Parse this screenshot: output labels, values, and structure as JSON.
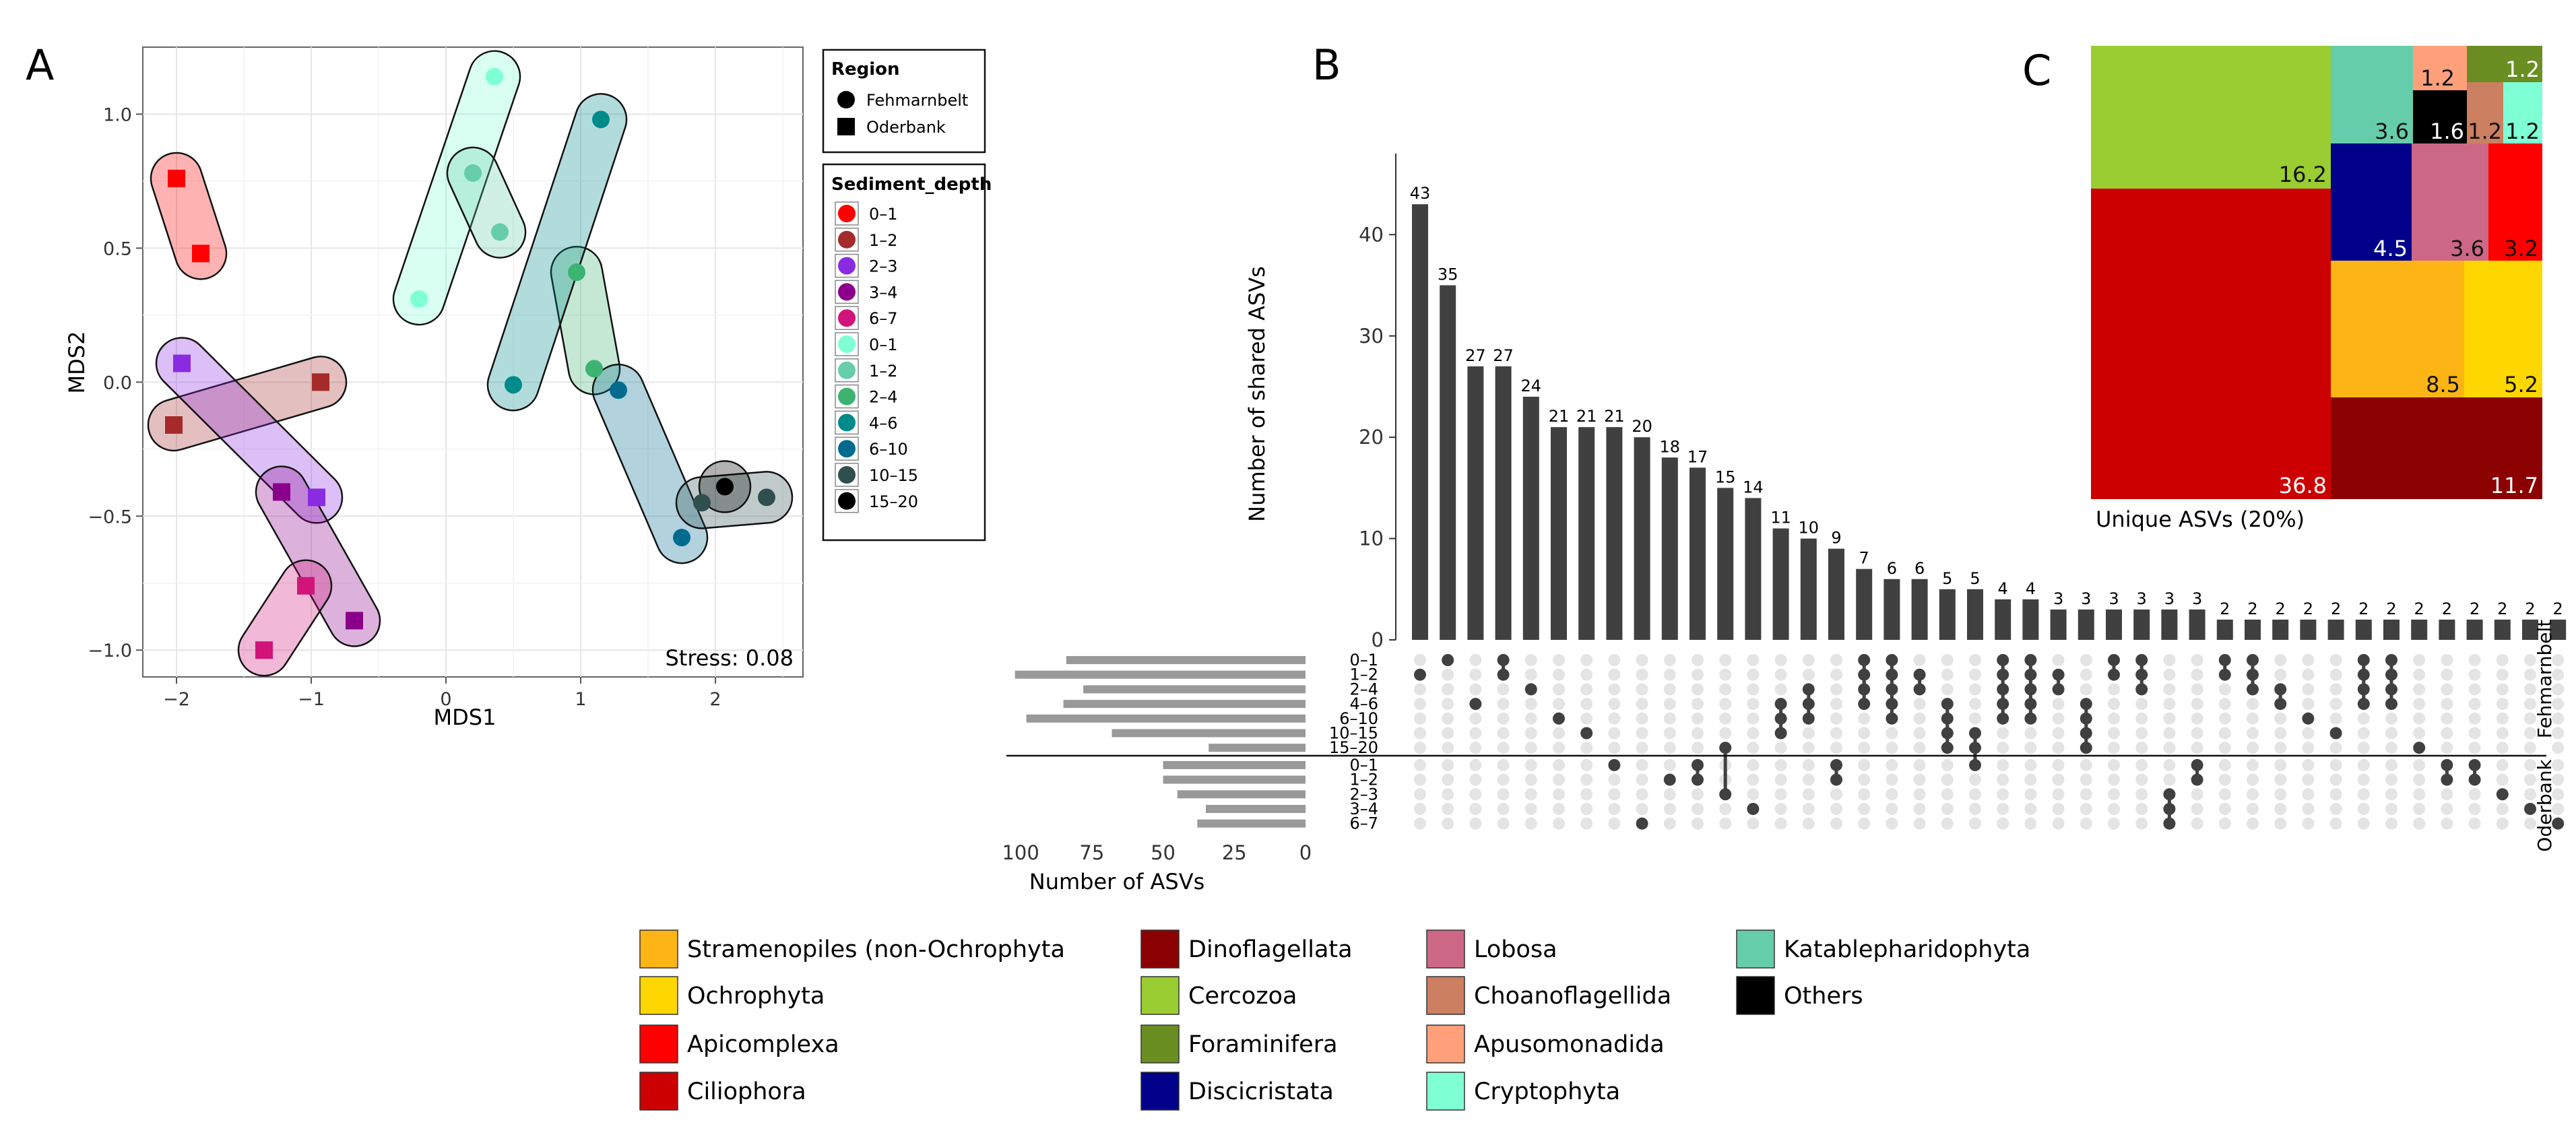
{
  "panel_labels": {
    "a": "A",
    "b": "B",
    "c": "C"
  },
  "colors": {
    "grid": "#e6e6e6",
    "bar": "#404040",
    "dot_on": "#404040",
    "dot_off": "#e4e4e4",
    "set_bar": "#999999"
  },
  "chart_data": [
    {
      "id": "nmds",
      "type": "scatter",
      "title": "",
      "xlabel": "MDS1",
      "ylabel": "MDS2",
      "xlim": [
        -2.25,
        2.65
      ],
      "ylim": [
        -1.1,
        1.25
      ],
      "x_ticks": [
        -2,
        -1,
        0,
        1,
        2
      ],
      "x_tick_labels": [
        "−2",
        "−1",
        "0",
        "1",
        "2"
      ],
      "y_ticks": [
        -1.0,
        -0.5,
        0.0,
        0.5,
        1.0
      ],
      "y_tick_labels": [
        "−1.0",
        "−0.5",
        "0.0",
        "0.5",
        "1.0"
      ],
      "stress_label": "Stress: 0.08",
      "legend_region": {
        "title": "Region",
        "items": [
          {
            "label": "Fehmarnbelt",
            "shape": "circle"
          },
          {
            "label": "Oderbank",
            "shape": "square"
          }
        ]
      },
      "legend_depth": {
        "title": "Sediment_depth",
        "items": [
          {
            "label": "0–1",
            "color": "#ff0000"
          },
          {
            "label": "1–2",
            "color": "#a52a2a"
          },
          {
            "label": "2–3",
            "color": "#8a2be2"
          },
          {
            "label": "3–4",
            "color": "#8b008b"
          },
          {
            "label": "6–7",
            "color": "#d0147a"
          },
          {
            "label": "0–1",
            "color": "#7fffd4"
          },
          {
            "label": "1–2",
            "color": "#66cdaa"
          },
          {
            "label": "2–4",
            "color": "#3cb371"
          },
          {
            "label": "4–6",
            "color": "#008b8b"
          },
          {
            "label": "6–10",
            "color": "#006b8f"
          },
          {
            "label": "10–15",
            "color": "#2f4f4f"
          },
          {
            "label": "15–20",
            "color": "#000000"
          }
        ]
      },
      "points": [
        {
          "x": -2.0,
          "y": 0.76,
          "shape": "square",
          "depth": 0
        },
        {
          "x": -1.82,
          "y": 0.48,
          "shape": "square",
          "depth": 0
        },
        {
          "x": -1.96,
          "y": 0.07,
          "shape": "square",
          "depth": 2
        },
        {
          "x": -2.02,
          "y": -0.16,
          "shape": "square",
          "depth": 1
        },
        {
          "x": -0.93,
          "y": 0.0,
          "shape": "square",
          "depth": 1
        },
        {
          "x": -1.22,
          "y": -0.41,
          "shape": "square",
          "depth": 3
        },
        {
          "x": -0.96,
          "y": -0.43,
          "shape": "square",
          "depth": 2
        },
        {
          "x": -1.04,
          "y": -0.76,
          "shape": "square",
          "depth": 4
        },
        {
          "x": -0.68,
          "y": -0.89,
          "shape": "square",
          "depth": 3
        },
        {
          "x": -1.35,
          "y": -1.0,
          "shape": "square",
          "depth": 4
        },
        {
          "x": 0.36,
          "y": 1.14,
          "shape": "circle",
          "depth": 5
        },
        {
          "x": 0.2,
          "y": 0.78,
          "shape": "circle",
          "depth": 6
        },
        {
          "x": 0.4,
          "y": 0.56,
          "shape": "circle",
          "depth": 6
        },
        {
          "x": -0.2,
          "y": 0.31,
          "shape": "circle",
          "depth": 5
        },
        {
          "x": 1.15,
          "y": 0.98,
          "shape": "circle",
          "depth": 8
        },
        {
          "x": 0.97,
          "y": 0.41,
          "shape": "circle",
          "depth": 7
        },
        {
          "x": 1.1,
          "y": 0.05,
          "shape": "circle",
          "depth": 7
        },
        {
          "x": 0.5,
          "y": -0.01,
          "shape": "circle",
          "depth": 8
        },
        {
          "x": 1.28,
          "y": -0.03,
          "shape": "circle",
          "depth": 9
        },
        {
          "x": 1.75,
          "y": -0.58,
          "shape": "circle",
          "depth": 9
        },
        {
          "x": 1.9,
          "y": -0.45,
          "shape": "circle",
          "depth": 10
        },
        {
          "x": 2.38,
          "y": -0.43,
          "shape": "circle",
          "depth": 10
        },
        {
          "x": 2.07,
          "y": -0.39,
          "shape": "circle",
          "depth": 11
        }
      ],
      "hulls": [
        {
          "x1": -2.0,
          "y1": 0.76,
          "x2": -1.82,
          "y2": 0.48,
          "color": "#ff0000"
        },
        {
          "x1": -2.02,
          "y1": -0.16,
          "x2": -0.93,
          "y2": 0.0,
          "color": "#a52a2a"
        },
        {
          "x1": -1.96,
          "y1": 0.07,
          "x2": -0.96,
          "y2": -0.43,
          "color": "#8a2be2"
        },
        {
          "x1": -1.22,
          "y1": -0.41,
          "x2": -0.68,
          "y2": -0.89,
          "color": "#8b008b"
        },
        {
          "x1": -1.04,
          "y1": -0.76,
          "x2": -1.35,
          "y2": -1.0,
          "color": "#d0147a"
        },
        {
          "x1": 0.36,
          "y1": 1.14,
          "x2": -0.2,
          "y2": 0.31,
          "color": "#7fffd4"
        },
        {
          "x1": 0.2,
          "y1": 0.78,
          "x2": 0.4,
          "y2": 0.56,
          "color": "#66cdaa"
        },
        {
          "x1": 0.97,
          "y1": 0.41,
          "x2": 1.1,
          "y2": 0.05,
          "color": "#3cb371"
        },
        {
          "x1": 1.15,
          "y1": 0.98,
          "x2": 0.5,
          "y2": -0.01,
          "color": "#008b8b"
        },
        {
          "x1": 1.28,
          "y1": -0.03,
          "x2": 1.75,
          "y2": -0.58,
          "color": "#006b8f"
        },
        {
          "x1": 1.9,
          "y1": -0.45,
          "x2": 2.38,
          "y2": -0.43,
          "color": "#2f4f4f"
        },
        {
          "x1": 2.07,
          "y1": -0.39,
          "x2": 2.07,
          "y2": -0.39,
          "color": "#000000"
        }
      ]
    },
    {
      "id": "upset",
      "type": "bar",
      "title": "",
      "ylabel": "Number of shared ASVs",
      "ylim": [
        0,
        48
      ],
      "y_ticks": [
        0,
        10,
        20,
        30,
        40
      ],
      "set_size_xlabel": "Number of ASVs",
      "set_size_ticks": [
        100,
        75,
        50,
        25,
        0
      ],
      "set_size_xlim": [
        0,
        105
      ],
      "group_labels": [
        "Fehmarnbelt",
        "Oderbank"
      ],
      "sets": [
        {
          "label": "0–1",
          "group": "Fehmarnbelt",
          "size": 84
        },
        {
          "label": "1–2",
          "group": "Fehmarnbelt",
          "size": 102
        },
        {
          "label": "2–4",
          "group": "Fehmarnbelt",
          "size": 78
        },
        {
          "label": "4–6",
          "group": "Fehmarnbelt",
          "size": 85
        },
        {
          "label": "6–10",
          "group": "Fehmarnbelt",
          "size": 98
        },
        {
          "label": "10–15",
          "group": "Fehmarnbelt",
          "size": 68
        },
        {
          "label": "15–20",
          "group": "Fehmarnbelt",
          "size": 34
        },
        {
          "label": "0–1",
          "group": "Oderbank",
          "size": 50
        },
        {
          "label": "1–2",
          "group": "Oderbank",
          "size": 50
        },
        {
          "label": "2–3",
          "group": "Oderbank",
          "size": 45
        },
        {
          "label": "3–4",
          "group": "Oderbank",
          "size": 35
        },
        {
          "label": "6–7",
          "group": "Oderbank",
          "size": 38
        }
      ],
      "values": [
        43,
        35,
        27,
        27,
        24,
        21,
        21,
        21,
        20,
        18,
        17,
        15,
        14,
        11,
        10,
        9,
        7,
        6,
        6,
        5,
        5,
        4,
        4,
        3,
        3,
        3,
        3,
        3,
        3,
        2,
        2,
        2,
        2,
        2,
        2,
        2,
        2,
        2,
        2,
        2,
        2,
        2
      ],
      "value_labels": [
        "43",
        "35",
        "27",
        "27",
        "24",
        "21",
        "21",
        "21",
        "20",
        "18",
        "17",
        "15",
        "14",
        "11",
        "10",
        "9",
        "7",
        "6",
        "6",
        "5",
        "5",
        "4",
        "4",
        "3",
        "3",
        "3",
        "3",
        "3",
        "3",
        "2",
        "2",
        "2",
        "2",
        "2",
        "2",
        "2",
        "2",
        "2",
        "2",
        "2",
        "2",
        "2"
      ],
      "intersections": [
        [
          1
        ],
        [
          0
        ],
        [
          3
        ],
        [
          1,
          0
        ],
        [
          2
        ],
        [
          4
        ],
        [
          5
        ],
        [
          7
        ],
        [
          11
        ],
        [
          8
        ],
        [
          7,
          8
        ],
        [
          6,
          9
        ],
        [
          10
        ],
        [
          3,
          4,
          5
        ],
        [
          2,
          3,
          4
        ],
        [
          7,
          8
        ],
        [
          0,
          1,
          2,
          3
        ],
        [
          0,
          1,
          2,
          3,
          4
        ],
        [
          1,
          2
        ],
        [
          3,
          4,
          5,
          6
        ],
        [
          5,
          6,
          7
        ],
        [
          0,
          1,
          2,
          3,
          4
        ],
        [
          0,
          1,
          2,
          3,
          4
        ],
        [
          1,
          2
        ],
        [
          3,
          4,
          5,
          6
        ],
        [
          0,
          1
        ],
        [
          0,
          1,
          2
        ],
        [
          9,
          10,
          11
        ],
        [
          7,
          8
        ],
        [
          0,
          1
        ],
        [
          0,
          1,
          2
        ],
        [
          2,
          3
        ],
        [
          4
        ],
        [
          5
        ],
        [
          0,
          1,
          2,
          3
        ],
        [
          0,
          1,
          2,
          3
        ],
        [
          6
        ],
        [
          7,
          8
        ],
        [
          7,
          8
        ],
        [
          9
        ],
        [
          10
        ],
        [
          11
        ]
      ]
    },
    {
      "id": "treemap",
      "type": "table",
      "title": "",
      "xlabel": "Unique ASVs (20%)",
      "categories": [
        "Ciliophora",
        "Cercozoa",
        "Dinoflagellata",
        "Stramenopiles (non-Ochrophyta",
        "Ochrophyta",
        "Discicristata",
        "Lobosa",
        "Apicomplexa",
        "Katablepharidophyta",
        "Others",
        "Apusomonadida",
        "Choanoflagellida",
        "Foraminifera",
        "Cryptophyta"
      ],
      "values": [
        36.8,
        16.2,
        11.7,
        8.5,
        5.2,
        4.5,
        3.6,
        3.2,
        3.6,
        1.6,
        1.2,
        1.2,
        1.2,
        1.2
      ],
      "value_labels": [
        "36.8",
        "16.2",
        "11.7",
        "8.5",
        "5.2",
        "4.5",
        "3.6",
        "3.2",
        "3.6",
        "1.6",
        "1.2",
        "1.2",
        "1.2",
        "1.2"
      ]
    }
  ],
  "legend": [
    {
      "label": "Stramenopiles (non-Ochrophyta",
      "color": "#fdb515"
    },
    {
      "label": "Ochrophyta",
      "color": "#ffd700"
    },
    {
      "label": "Apicomplexa",
      "color": "#ff0000"
    },
    {
      "label": "Ciliophora",
      "color": "#cc0000"
    },
    {
      "label": "Dinoflagellata",
      "color": "#8b0000"
    },
    {
      "label": "Cercozoa",
      "color": "#9acd32"
    },
    {
      "label": "Foraminifera",
      "color": "#6b8e23"
    },
    {
      "label": "Discicristata",
      "color": "#00008b"
    },
    {
      "label": "Lobosa",
      "color": "#cd6786"
    },
    {
      "label": "Choanoflagellida",
      "color": "#cc7f61"
    },
    {
      "label": "Apusomonadida",
      "color": "#ffa07a"
    },
    {
      "label": "Cryptophyta",
      "color": "#7fffd4"
    },
    {
      "label": "Katablepharidophyta",
      "color": "#66cdaa"
    },
    {
      "label": "Others",
      "color": "#000000"
    }
  ]
}
